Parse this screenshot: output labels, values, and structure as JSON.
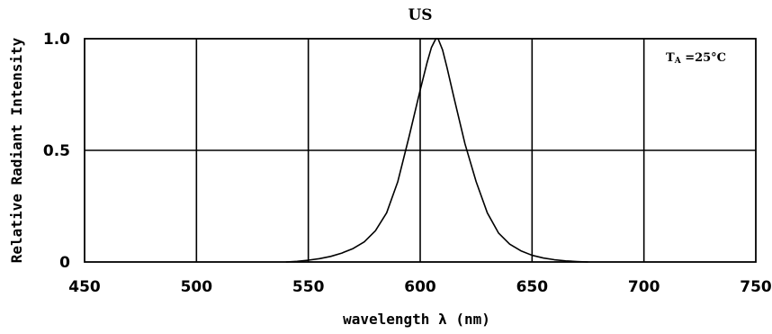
{
  "chart_data": {
    "type": "line",
    "title": "US",
    "xlabel": "wavelength λ (nm)",
    "ylabel": "Relative Radiant Intensity",
    "annotation": {
      "main": "T",
      "sub": "A",
      "rest": " =25°C"
    },
    "xlim": [
      450,
      750
    ],
    "ylim": [
      0,
      1.0
    ],
    "x_ticks": [
      450,
      500,
      550,
      600,
      650,
      700,
      750
    ],
    "y_ticks": [
      {
        "value": 0,
        "label": "0"
      },
      {
        "value": 0.5,
        "label": "0.5"
      },
      {
        "value": 1.0,
        "label": "1.0"
      }
    ],
    "grid": true,
    "series": [
      {
        "x": [
          540,
          545,
          550,
          555,
          560,
          565,
          570,
          575,
          580,
          585,
          590,
          595,
          600,
          603,
          605,
          607,
          608,
          610,
          612,
          615,
          620,
          625,
          630,
          635,
          640,
          645,
          650,
          655,
          660,
          665,
          670,
          675
        ],
        "y": [
          0.0,
          0.003,
          0.008,
          0.015,
          0.025,
          0.04,
          0.06,
          0.09,
          0.14,
          0.22,
          0.36,
          0.56,
          0.77,
          0.89,
          0.96,
          1.0,
          1.0,
          0.95,
          0.87,
          0.74,
          0.53,
          0.36,
          0.22,
          0.13,
          0.08,
          0.05,
          0.03,
          0.018,
          0.01,
          0.005,
          0.002,
          0.0
        ]
      }
    ]
  }
}
